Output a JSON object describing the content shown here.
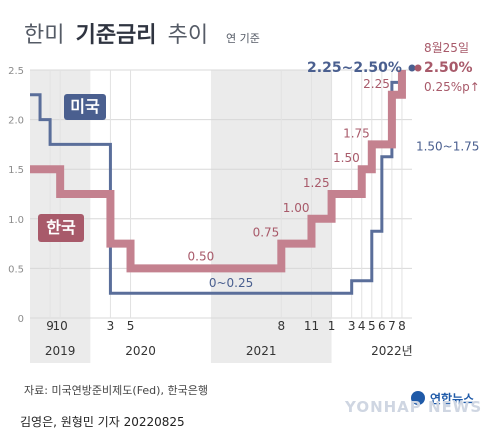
{
  "title": {
    "light": "한미",
    "bold": "기준금리",
    "light2": "추이",
    "subtitle": "연 기준"
  },
  "colors": {
    "us": "#5a6e9a",
    "korea": "#c4818f",
    "us_badge": "#4a5f8f",
    "korea_badge": "#a85a6a",
    "band": "#ebebeb",
    "grid": "#d8d8d8"
  },
  "chart_data": {
    "type": "line",
    "ylim": [
      0,
      2.5
    ],
    "yticks": [
      "0",
      "0.5",
      "1.0",
      "1.5",
      "2.0",
      "2.5"
    ],
    "x_start": "2019-07",
    "x_end": "2022-09",
    "xtick_labels": [
      {
        "label": "9",
        "date": "2019-09"
      },
      {
        "label": "10",
        "date": "2019-10"
      },
      {
        "label": "3",
        "date": "2020-03"
      },
      {
        "label": "5",
        "date": "2020-05"
      },
      {
        "label": "8",
        "date": "2021-08"
      },
      {
        "label": "11",
        "date": "2021-11"
      },
      {
        "label": "1",
        "date": "2022-01"
      },
      {
        "label": "3",
        "date": "2022-03"
      },
      {
        "label": "4",
        "date": "2022-04"
      },
      {
        "label": "5",
        "date": "2022-05"
      },
      {
        "label": "6",
        "date": "2022-06"
      },
      {
        "label": "7",
        "date": "2022-07"
      },
      {
        "label": "8",
        "date": "2022-08"
      }
    ],
    "years": [
      {
        "label": "2019",
        "date": "2019-10",
        "band_start": "2019-07",
        "band_end": "2019-12"
      },
      {
        "label": "2020",
        "date": "2020-06",
        "band_start": null,
        "band_end": null
      },
      {
        "label": "2021",
        "date": "2021-06",
        "band_start": "2021-01",
        "band_end": "2021-12"
      },
      {
        "label": "2022년",
        "date": "2022-07",
        "band_start": null,
        "band_end": null
      }
    ],
    "series": [
      {
        "name": "미국",
        "key": "us",
        "steps": [
          {
            "date": "2019-07",
            "value": 2.25
          },
          {
            "date": "2019-08",
            "value": 2.0
          },
          {
            "date": "2019-09",
            "value": 1.75
          },
          {
            "date": "2019-10",
            "value": 1.75
          },
          {
            "date": "2020-03",
            "value": 0.25
          },
          {
            "date": "2022-03",
            "value": 0.375
          },
          {
            "date": "2022-05",
            "value": 0.875
          },
          {
            "date": "2022-06",
            "value": 1.625
          },
          {
            "date": "2022-07",
            "value": 2.375
          },
          {
            "date": "2022-08",
            "value": 2.375
          }
        ],
        "labels": [
          {
            "text": "0~0.25",
            "date": "2021-03",
            "value": 0.25
          },
          {
            "text": "1.50~1.75",
            "date": "2022-08",
            "value": 1.75
          },
          {
            "text": "2.25~2.50%",
            "date": "2022-07",
            "value": 2.5
          }
        ]
      },
      {
        "name": "한국",
        "key": "korea",
        "steps": [
          {
            "date": "2019-07",
            "value": 1.5
          },
          {
            "date": "2019-08",
            "value": 1.5
          },
          {
            "date": "2019-10",
            "value": 1.25
          },
          {
            "date": "2020-03",
            "value": 0.75
          },
          {
            "date": "2020-05",
            "value": 0.5
          },
          {
            "date": "2021-08",
            "value": 0.75
          },
          {
            "date": "2021-11",
            "value": 1.0
          },
          {
            "date": "2022-01",
            "value": 1.25
          },
          {
            "date": "2022-04",
            "value": 1.5
          },
          {
            "date": "2022-05",
            "value": 1.75
          },
          {
            "date": "2022-07",
            "value": 2.25
          },
          {
            "date": "2022-08",
            "value": 2.5
          }
        ],
        "labels": [
          {
            "text": "0.50",
            "date": "2020-12",
            "value": 0.5
          },
          {
            "text": "0.75",
            "date": "2021-08",
            "value": 0.75
          },
          {
            "text": "1.00",
            "date": "2021-11",
            "value": 1.0
          },
          {
            "text": "1.25",
            "date": "2022-01",
            "value": 1.25
          },
          {
            "text": "1.50",
            "date": "2022-04",
            "value": 1.5
          },
          {
            "text": "1.75",
            "date": "2022-05",
            "value": 1.75
          },
          {
            "text": "2.25",
            "date": "2022-07",
            "value": 2.25
          }
        ]
      }
    ],
    "annotation": {
      "date_text": "8월25일",
      "value_text": "2.50%",
      "change_text": "0.25%p↑"
    }
  },
  "footer": {
    "source": "자료: 미국연방준비제도(Fed), 한국은행",
    "credit": "김영은, 원형민 기자 20220825",
    "logo_kr": "연합뉴스",
    "logo_en": "YONHAP NEWS"
  }
}
